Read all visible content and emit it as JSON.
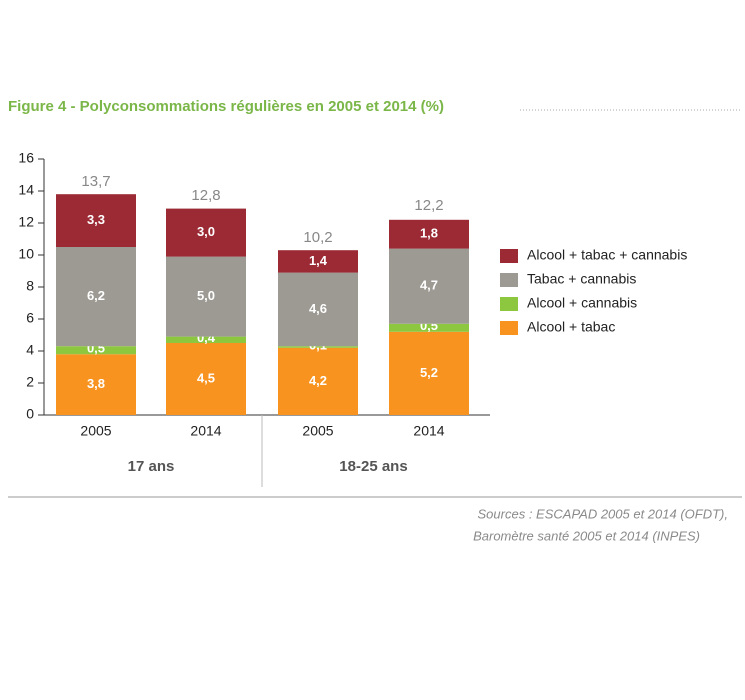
{
  "chart_data": {
    "type": "stacked_bar",
    "title": "Figure 4 - Polyconsommations régulières en 2005 et 2014 (%)",
    "categories": [
      "2005",
      "2014",
      "2005",
      "2014"
    ],
    "group_labels": [
      "17 ans",
      "18-25 ans"
    ],
    "series": [
      {
        "name": "Alcool + tabac",
        "color": "#f7931e",
        "values": [
          3.8,
          4.5,
          4.2,
          5.2
        ],
        "value_labels": [
          "3,8",
          "4,5",
          "4,2",
          "5,2"
        ]
      },
      {
        "name": "Alcool + cannabis",
        "color": "#8dc63f",
        "values": [
          0.5,
          0.4,
          0.1,
          0.5
        ],
        "value_labels": [
          "0,5",
          "0,4",
          "0,1",
          "0,5"
        ]
      },
      {
        "name": "Tabac + cannabis",
        "color": "#9d9a94",
        "values": [
          6.2,
          5.0,
          4.6,
          4.7
        ],
        "value_labels": [
          "6,2",
          "5,0",
          "4,6",
          "4,7"
        ]
      },
      {
        "name": "Alcool + tabac + cannabis",
        "color": "#9b2a35",
        "values": [
          3.3,
          3.0,
          1.4,
          1.8
        ],
        "value_labels": [
          "3,3",
          "3,0",
          "1,4",
          "1,8"
        ]
      }
    ],
    "totals": [
      13.7,
      12.8,
      10.2,
      12.2
    ],
    "total_labels": [
      "13,7",
      "12,8",
      "10,2",
      "12,2"
    ],
    "ylim": [
      0,
      16
    ],
    "yticks": [
      0,
      2,
      4,
      6,
      8,
      10,
      12,
      14,
      16
    ],
    "sources": [
      "Sources : ESCAPAD 2005 et 2014 (OFDT),",
      "Baromètre santé 2005 et 2014 (INPES)"
    ]
  }
}
